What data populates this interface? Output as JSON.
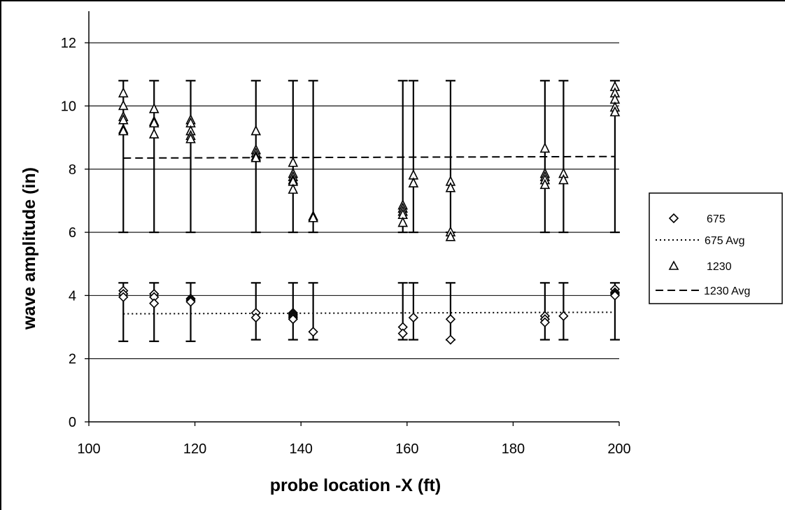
{
  "chart_data": {
    "type": "scatter",
    "xlabel": "probe location -X (ft)",
    "ylabel": "wave amplitude (in)",
    "xlim": [
      100,
      200
    ],
    "ylim": [
      0,
      13
    ],
    "x_ticks": [
      "100",
      "120",
      "140",
      "160",
      "180",
      "200"
    ],
    "y_ticks": [
      "0",
      "2",
      "4",
      "6",
      "8",
      "10",
      "12"
    ],
    "grid": "horizontal",
    "legend_position": "right",
    "legend": [
      "675",
      "675 Avg",
      "1230",
      "1230 Avg"
    ],
    "series": [
      {
        "name": "675",
        "marker": "diamond",
        "points": [
          [
            106.5,
            4.15
          ],
          [
            106.5,
            4.05
          ],
          [
            106.5,
            3.95
          ],
          [
            112.3,
            4.05
          ],
          [
            112.3,
            3.95
          ],
          [
            112.3,
            3.75
          ],
          [
            119.2,
            3.9
          ],
          [
            119.2,
            3.85
          ],
          [
            119.2,
            3.8
          ],
          [
            131.5,
            3.45
          ],
          [
            131.5,
            3.3
          ],
          [
            138.5,
            3.45
          ],
          [
            138.5,
            3.4
          ],
          [
            138.5,
            3.35
          ],
          [
            138.5,
            3.3
          ],
          [
            138.5,
            3.25
          ],
          [
            142.3,
            2.85
          ],
          [
            159.2,
            3.0
          ],
          [
            159.2,
            2.8
          ],
          [
            161.2,
            3.3
          ],
          [
            168.2,
            3.25
          ],
          [
            168.2,
            2.6
          ],
          [
            186.0,
            3.35
          ],
          [
            186.0,
            3.25
          ],
          [
            186.0,
            3.15
          ],
          [
            189.5,
            3.35
          ],
          [
            199.2,
            4.2
          ],
          [
            199.2,
            4.1
          ],
          [
            199.2,
            4.05
          ],
          [
            199.2,
            4.0
          ]
        ],
        "error_bars": [
          [
            106.5,
            2.55,
            4.4
          ],
          [
            112.3,
            2.55,
            4.4
          ],
          [
            119.2,
            2.55,
            4.4
          ],
          [
            131.5,
            2.6,
            4.4
          ],
          [
            138.5,
            2.6,
            4.4
          ],
          [
            142.3,
            2.6,
            4.4
          ],
          [
            159.2,
            2.6,
            4.4
          ],
          [
            161.2,
            2.6,
            4.4
          ],
          [
            168.2,
            2.6,
            4.4
          ],
          [
            186.0,
            2.6,
            4.4
          ],
          [
            189.5,
            2.6,
            4.4
          ],
          [
            199.2,
            2.6,
            4.4
          ]
        ]
      },
      {
        "name": "675 Avg",
        "line": "dotted",
        "points": [
          [
            106.5,
            3.42
          ],
          [
            199.2,
            3.47
          ]
        ]
      },
      {
        "name": "1230",
        "marker": "triangle",
        "points": [
          [
            106.5,
            10.4
          ],
          [
            106.5,
            10.0
          ],
          [
            106.5,
            9.65
          ],
          [
            106.5,
            9.55
          ],
          [
            106.5,
            9.25
          ],
          [
            106.5,
            9.2
          ],
          [
            112.3,
            9.9
          ],
          [
            112.3,
            9.5
          ],
          [
            112.3,
            9.45
          ],
          [
            112.3,
            9.1
          ],
          [
            119.2,
            9.55
          ],
          [
            119.2,
            9.45
          ],
          [
            119.2,
            9.2
          ],
          [
            119.2,
            9.05
          ],
          [
            119.2,
            8.95
          ],
          [
            131.5,
            9.2
          ],
          [
            131.5,
            8.6
          ],
          [
            131.5,
            8.5
          ],
          [
            131.5,
            8.4
          ],
          [
            131.5,
            8.35
          ],
          [
            138.5,
            8.2
          ],
          [
            138.5,
            7.85
          ],
          [
            138.5,
            7.75
          ],
          [
            138.5,
            7.65
          ],
          [
            138.5,
            7.6
          ],
          [
            138.5,
            7.35
          ],
          [
            142.3,
            6.5
          ],
          [
            142.3,
            6.45
          ],
          [
            159.2,
            6.85
          ],
          [
            159.2,
            6.75
          ],
          [
            159.2,
            6.65
          ],
          [
            159.2,
            6.55
          ],
          [
            159.2,
            6.3
          ],
          [
            161.2,
            7.8
          ],
          [
            161.2,
            7.55
          ],
          [
            168.2,
            7.6
          ],
          [
            168.2,
            7.4
          ],
          [
            168.2,
            6.0
          ],
          [
            168.2,
            5.85
          ],
          [
            186.0,
            8.65
          ],
          [
            186.0,
            7.85
          ],
          [
            186.0,
            7.75
          ],
          [
            186.0,
            7.65
          ],
          [
            186.0,
            7.5
          ],
          [
            189.5,
            7.85
          ],
          [
            189.5,
            7.65
          ],
          [
            199.2,
            10.6
          ],
          [
            199.2,
            10.4
          ],
          [
            199.2,
            10.2
          ],
          [
            199.2,
            9.95
          ],
          [
            199.2,
            9.8
          ]
        ],
        "error_bars": [
          [
            106.5,
            6.0,
            10.8
          ],
          [
            112.3,
            6.0,
            10.8
          ],
          [
            119.2,
            6.0,
            10.8
          ],
          [
            131.5,
            6.0,
            10.8
          ],
          [
            138.5,
            6.0,
            10.8
          ],
          [
            142.3,
            6.0,
            10.8
          ],
          [
            159.2,
            6.0,
            10.8
          ],
          [
            161.2,
            6.0,
            10.8
          ],
          [
            168.2,
            6.0,
            10.8
          ],
          [
            186.0,
            6.0,
            10.8
          ],
          [
            189.5,
            6.0,
            10.8
          ],
          [
            199.2,
            6.0,
            10.8
          ]
        ]
      },
      {
        "name": "1230 Avg",
        "line": "dashed",
        "points": [
          [
            106.5,
            8.35
          ],
          [
            199.2,
            8.4
          ]
        ]
      }
    ]
  }
}
